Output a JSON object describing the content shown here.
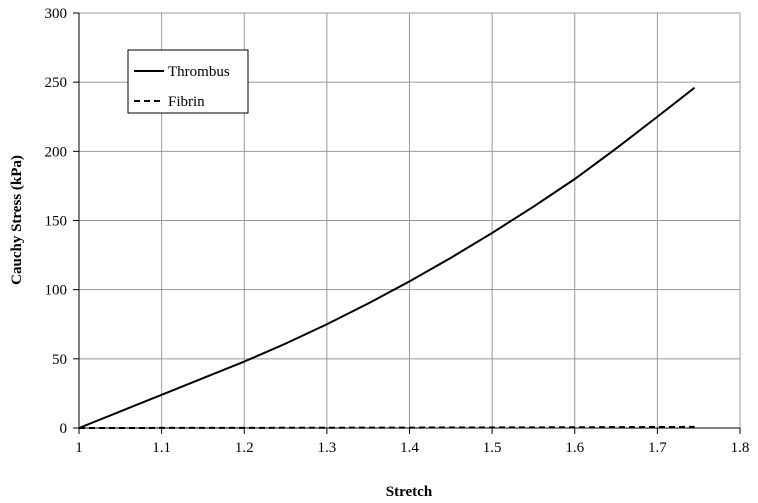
{
  "chart_data": {
    "type": "line",
    "title": "",
    "xlabel": "Stretch",
    "ylabel": "Cauchy Stress (kPa)",
    "xlim": [
      1,
      1.8
    ],
    "ylim": [
      0,
      300
    ],
    "xticks": [
      1,
      1.1,
      1.2,
      1.3,
      1.4,
      1.5,
      1.6,
      1.7,
      1.8
    ],
    "yticks": [
      0,
      50,
      100,
      150,
      200,
      250,
      300
    ],
    "xtick_labels": [
      "1",
      "1.1",
      "1.2",
      "1.3",
      "1.4",
      "1.5",
      "1.6",
      "1.7",
      "1.8"
    ],
    "ytick_labels": [
      "0",
      "50",
      "100",
      "150",
      "200",
      "250",
      "300"
    ],
    "grid": true,
    "legend_position": "top-left",
    "series": [
      {
        "name": "Thrombus",
        "style": "solid",
        "color": "#000000",
        "x": [
          1.0,
          1.05,
          1.1,
          1.15,
          1.2,
          1.25,
          1.3,
          1.35,
          1.4,
          1.45,
          1.5,
          1.55,
          1.6,
          1.65,
          1.7,
          1.745
        ],
        "y": [
          0,
          12,
          24,
          36,
          48,
          61,
          75,
          90,
          106,
          123,
          141,
          160,
          180,
          202,
          225,
          246
        ]
      },
      {
        "name": "Fibrin",
        "style": "dashed",
        "color": "#000000",
        "x": [
          1.0,
          1.1,
          1.2,
          1.3,
          1.4,
          1.5,
          1.6,
          1.7,
          1.745
        ],
        "y": [
          0,
          0.05,
          0.1,
          0.2,
          0.3,
          0.4,
          0.55,
          0.7,
          0.8
        ]
      }
    ]
  }
}
